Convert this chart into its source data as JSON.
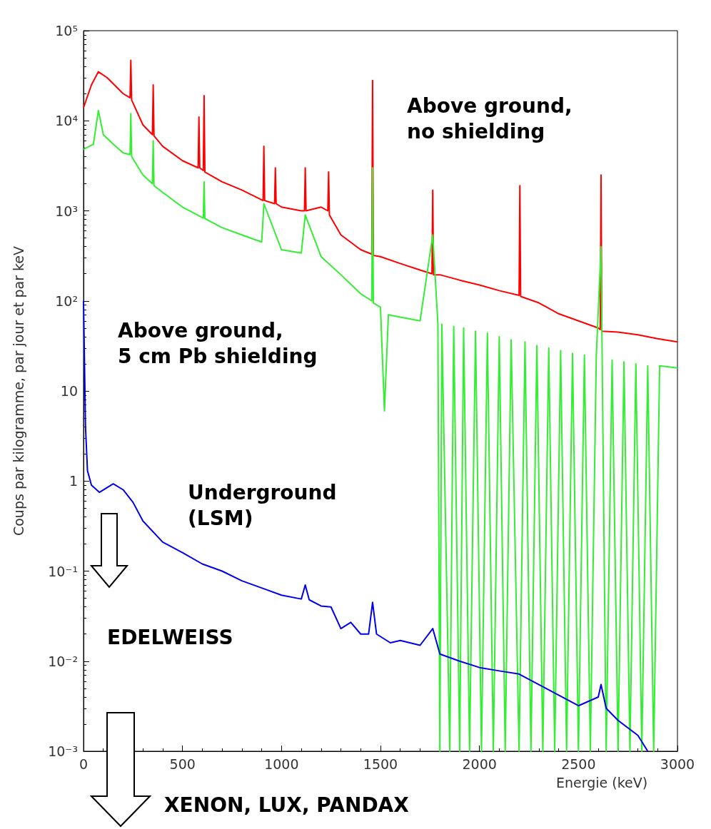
{
  "chart_data": {
    "type": "line",
    "xlabel": "Energie (keV)",
    "ylabel": "Coups par kilogramme, par jour et par keV",
    "log": "y",
    "grid": false,
    "marker": "none",
    "line_style": "solid",
    "xlim": [
      0,
      3000
    ],
    "xticks": [
      0,
      500,
      1000,
      1500,
      2000,
      2500,
      3000
    ],
    "ylim": [
      0.001,
      100000
    ],
    "yticks": [
      {
        "value": 0.001,
        "label": "10⁻³"
      },
      {
        "value": 0.01,
        "label": "10⁻²"
      },
      {
        "value": 0.1,
        "label": "10⁻¹"
      },
      {
        "value": 1,
        "label": "1"
      },
      {
        "value": 10,
        "label": "10"
      },
      {
        "value": 100,
        "label": "10²"
      },
      {
        "value": 1000,
        "label": "10³"
      },
      {
        "value": 10000,
        "label": "10⁴"
      },
      {
        "value": 100000,
        "label": "10⁵"
      }
    ],
    "annotations": [
      "Above ground,\nno shielding",
      "Above ground,\n5 cm Pb shielding",
      "Underground\n(LSM)",
      "EDELWEISS",
      "XENON, LUX, PANDAX"
    ],
    "series": [
      {
        "color": "#ff0000",
        "x": [
          0,
          40,
          75,
          120,
          200,
          235,
          239,
          243,
          300,
          348,
          352,
          356,
          400,
          500,
          579,
          583,
          587,
          605,
          609,
          613,
          700,
          800,
          907,
          911,
          915,
          965,
          969,
          973,
          1000,
          1100,
          1116,
          1120,
          1124,
          1200,
          1234,
          1238,
          1242,
          1300,
          1400,
          1456,
          1460,
          1464,
          1500,
          1600,
          1700,
          1760,
          1764,
          1768,
          1800,
          1900,
          2000,
          2100,
          2200,
          2204,
          2208,
          2300,
          2400,
          2500,
          2600,
          2610,
          2614,
          2618,
          2700,
          2800,
          2900,
          3000
        ],
        "values": [
          14000,
          25000,
          35000,
          30000,
          20000,
          18000,
          47000,
          17000,
          9000,
          7000,
          25000,
          6800,
          5200,
          3600,
          3000,
          11000,
          3000,
          2800,
          19000,
          2700,
          2100,
          1700,
          1300,
          5200,
          1300,
          1200,
          3000,
          1200,
          1100,
          1000,
          1000,
          3000,
          1000,
          1100,
          1000,
          2700,
          900,
          540,
          370,
          330,
          28000,
          320,
          310,
          260,
          220,
          200,
          1700,
          195,
          195,
          170,
          150,
          130,
          115,
          1900,
          112,
          95,
          72,
          60,
          50,
          48,
          2500,
          46,
          45,
          42,
          38,
          35
        ]
      },
      {
        "color": "#33ee33",
        "x": [
          0,
          50,
          75,
          100,
          150,
          200,
          235,
          239,
          243,
          300,
          348,
          352,
          356,
          400,
          500,
          605,
          609,
          613,
          700,
          800,
          900,
          911,
          1000,
          1100,
          1120,
          1200,
          1300,
          1400,
          1456,
          1460,
          1464,
          1500,
          1520,
          1540,
          1600,
          1700,
          1764,
          1790,
          1800,
          1810,
          1850,
          1870,
          1900,
          1920,
          1950,
          1980,
          2010,
          2040,
          2070,
          2100,
          2130,
          2160,
          2200,
          2230,
          2260,
          2290,
          2320,
          2350,
          2380,
          2410,
          2440,
          2470,
          2500,
          2530,
          2560,
          2590,
          2614,
          2640,
          2670,
          2700,
          2730,
          2760,
          2790,
          2820,
          2850,
          2880,
          2910,
          3000
        ],
        "values": [
          4800,
          5500,
          13000,
          7000,
          5500,
          4400,
          4200,
          12000,
          4000,
          2500,
          2000,
          6000,
          1900,
          1600,
          1100,
          830,
          2100,
          820,
          650,
          540,
          450,
          1200,
          370,
          340,
          900,
          310,
          195,
          120,
          100,
          3000,
          95,
          85,
          6,
          70,
          66,
          60,
          540,
          56,
          0.001,
          55,
          0.001,
          52,
          0.001,
          50,
          0.001,
          46,
          0.001,
          44,
          0.001,
          40,
          0.001,
          37,
          0.001,
          35,
          0.001,
          32,
          0.001,
          30,
          0.001,
          28,
          0.001,
          26,
          0.001,
          25,
          0.001,
          24,
          400,
          0.001,
          22,
          0.001,
          21,
          0.001,
          20,
          0.001,
          19,
          0.001,
          19,
          18
        ]
      },
      {
        "color": "#0000ee",
        "x": [
          0,
          10,
          20,
          40,
          80,
          150,
          200,
          250,
          300,
          400,
          500,
          600,
          700,
          800,
          900,
          1000,
          1100,
          1120,
          1140,
          1200,
          1250,
          1300,
          1350,
          1400,
          1440,
          1460,
          1480,
          1550,
          1600,
          1700,
          1764,
          1800,
          1900,
          2000,
          2100,
          2200,
          2300,
          2400,
          2500,
          2600,
          2614,
          2640,
          2700,
          2800,
          2850
        ],
        "values": [
          100,
          4,
          1.3,
          0.9,
          0.75,
          0.93,
          0.8,
          0.58,
          0.36,
          0.21,
          0.16,
          0.12,
          0.1,
          0.078,
          0.065,
          0.054,
          0.049,
          0.07,
          0.048,
          0.041,
          0.04,
          0.023,
          0.027,
          0.02,
          0.02,
          0.045,
          0.02,
          0.016,
          0.017,
          0.015,
          0.023,
          0.012,
          0.01,
          0.0085,
          0.0078,
          0.0072,
          0.0055,
          0.0042,
          0.0032,
          0.004,
          0.0055,
          0.003,
          0.0022,
          0.0015,
          0.001
        ]
      }
    ]
  }
}
